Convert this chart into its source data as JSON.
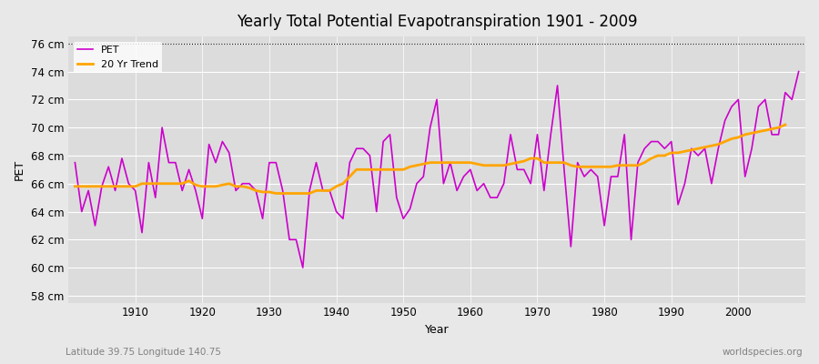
{
  "title": "Yearly Total Potential Evapotranspiration 1901 - 2009",
  "xlabel": "Year",
  "ylabel": "PET",
  "subtitle": "Latitude 39.75 Longitude 140.75",
  "watermark": "worldspecies.org",
  "bg_color": "#e8e8e8",
  "plot_bg_color": "#dcdcdc",
  "pet_color": "#cc00cc",
  "trend_color": "#ffa500",
  "ylim": [
    57.5,
    76.5
  ],
  "yticks": [
    58,
    60,
    62,
    64,
    66,
    68,
    70,
    72,
    74,
    76
  ],
  "years": [
    1901,
    1902,
    1903,
    1904,
    1905,
    1906,
    1907,
    1908,
    1909,
    1910,
    1911,
    1912,
    1913,
    1914,
    1915,
    1916,
    1917,
    1918,
    1919,
    1920,
    1921,
    1922,
    1923,
    1924,
    1925,
    1926,
    1927,
    1928,
    1929,
    1930,
    1931,
    1932,
    1933,
    1934,
    1935,
    1936,
    1937,
    1938,
    1939,
    1940,
    1941,
    1942,
    1943,
    1944,
    1945,
    1946,
    1947,
    1948,
    1949,
    1950,
    1951,
    1952,
    1953,
    1954,
    1955,
    1956,
    1957,
    1958,
    1959,
    1960,
    1961,
    1962,
    1963,
    1964,
    1965,
    1966,
    1967,
    1968,
    1969,
    1970,
    1971,
    1972,
    1973,
    1974,
    1975,
    1976,
    1977,
    1978,
    1979,
    1980,
    1981,
    1982,
    1983,
    1984,
    1985,
    1986,
    1987,
    1988,
    1989,
    1990,
    1991,
    1992,
    1993,
    1994,
    1995,
    1996,
    1997,
    1998,
    1999,
    2000,
    2001,
    2002,
    2003,
    2004,
    2005,
    2006,
    2007,
    2008,
    2009
  ],
  "pet_values": [
    67.5,
    64.0,
    65.5,
    63.0,
    65.8,
    67.2,
    65.5,
    67.8,
    66.0,
    65.5,
    62.5,
    67.5,
    65.0,
    70.0,
    67.5,
    67.5,
    65.5,
    67.0,
    65.5,
    63.5,
    68.8,
    67.5,
    69.0,
    68.2,
    65.5,
    66.0,
    66.0,
    65.5,
    63.5,
    67.5,
    67.5,
    65.5,
    62.0,
    62.0,
    60.0,
    65.5,
    67.5,
    65.5,
    65.5,
    64.0,
    63.5,
    67.5,
    68.5,
    68.5,
    68.0,
    64.0,
    69.0,
    69.5,
    65.0,
    63.5,
    64.2,
    66.0,
    66.5,
    70.0,
    72.0,
    66.0,
    67.5,
    65.5,
    66.5,
    67.0,
    65.5,
    66.0,
    65.0,
    65.0,
    66.0,
    69.5,
    67.0,
    67.0,
    66.0,
    69.5,
    65.5,
    69.5,
    73.0,
    67.0,
    61.5,
    67.5,
    66.5,
    67.0,
    66.5,
    63.0,
    66.5,
    66.5,
    69.5,
    62.0,
    67.5,
    68.5,
    69.0,
    69.0,
    68.5,
    69.0,
    64.5,
    66.0,
    68.5,
    68.0,
    68.5,
    66.0,
    68.5,
    70.5,
    71.5,
    72.0,
    66.5,
    68.5,
    71.5,
    72.0,
    69.5,
    69.5,
    72.5,
    72.0,
    74.0
  ],
  "trend_values": [
    65.8,
    65.8,
    65.8,
    65.8,
    65.8,
    65.8,
    65.8,
    65.8,
    65.8,
    65.8,
    66.0,
    66.0,
    66.0,
    66.0,
    66.0,
    66.0,
    66.0,
    66.2,
    65.9,
    65.8,
    65.8,
    65.8,
    65.9,
    66.0,
    65.8,
    65.8,
    65.7,
    65.5,
    65.4,
    65.4,
    65.3,
    65.3,
    65.3,
    65.3,
    65.3,
    65.3,
    65.5,
    65.5,
    65.5,
    65.8,
    66.0,
    66.5,
    67.0,
    67.0,
    67.0,
    67.0,
    67.0,
    67.0,
    67.0,
    67.0,
    67.2,
    67.3,
    67.4,
    67.5,
    67.5,
    67.5,
    67.5,
    67.5,
    67.5,
    67.5,
    67.4,
    67.3,
    67.3,
    67.3,
    67.3,
    67.4,
    67.5,
    67.6,
    67.8,
    67.8,
    67.5,
    67.5,
    67.5,
    67.5,
    67.3,
    67.2,
    67.2,
    67.2,
    67.2,
    67.2,
    67.2,
    67.3,
    67.3,
    67.3,
    67.3,
    67.5,
    67.8,
    68.0,
    68.0,
    68.2,
    68.2,
    68.3,
    68.4,
    68.5,
    68.6,
    68.7,
    68.8,
    69.0,
    69.2,
    69.3,
    69.5,
    69.6,
    69.7,
    69.8,
    69.9,
    70.0,
    70.2,
    null,
    null
  ]
}
